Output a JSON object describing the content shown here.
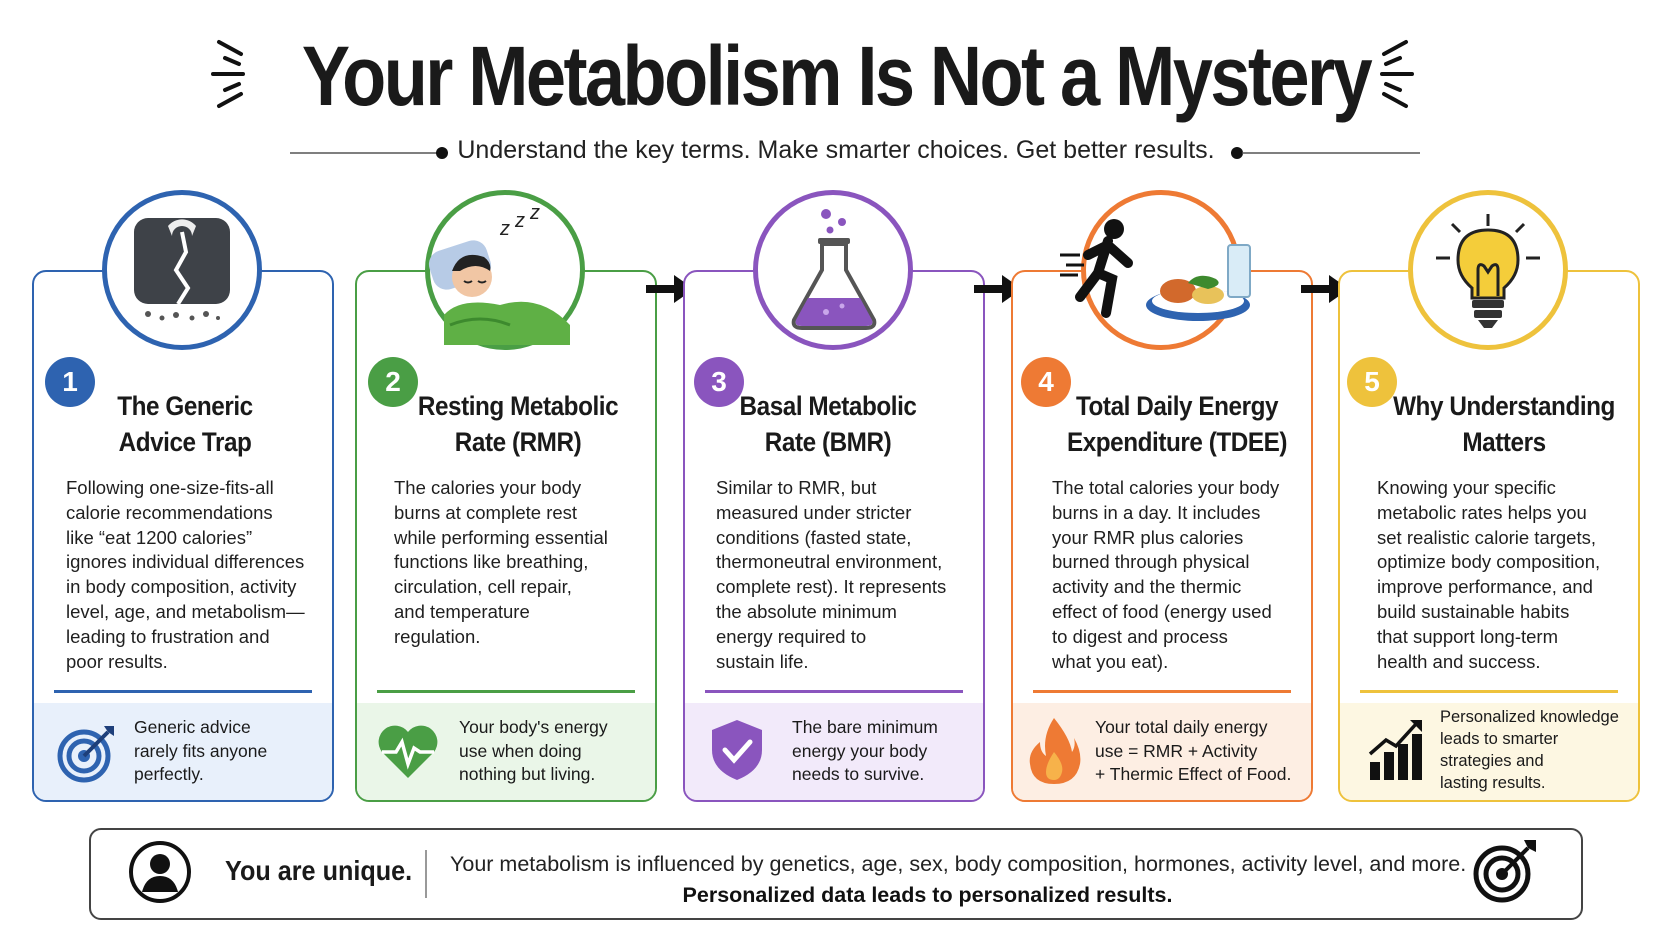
{
  "title": "Your Metabolism Is Not a Mystery",
  "subtitle": "Understand the key terms. Make smarter choices. Get better results.",
  "steps": [
    {
      "number": "1",
      "heading_line1": "The Generic",
      "heading_line2": "Advice Trap",
      "lines": [
        "Following one-size-fits-all",
        "calorie recommendations",
        "like “eat 1200 calories”",
        "ignores individual differences",
        "in body composition, activity",
        "level, age, and metabolism—",
        "leading to frustration and",
        "poor results."
      ],
      "footer": [
        "Generic advice",
        "rarely fits anyone",
        "perfectly."
      ],
      "color": "#2e63b0",
      "tint": "#e8f0fb",
      "icon": "broken-scale-icon",
      "footer_icon": "target-icon"
    },
    {
      "number": "2",
      "heading_line1": "Resting Metabolic",
      "heading_line2": "Rate (RMR)",
      "lines": [
        "The calories your body",
        "burns at complete rest",
        "while performing essential",
        "functions like breathing,",
        "circulation, cell repair,",
        "and temperature",
        "regulation."
      ],
      "footer": [
        "Your body's energy",
        "use when doing",
        "nothing but living."
      ],
      "color": "#4a9e45",
      "tint": "#eaf6e8",
      "icon": "sleeping-person-icon",
      "footer_icon": "heartbeat-icon"
    },
    {
      "number": "3",
      "heading_line1": "Basal Metabolic",
      "heading_line2": "Rate (BMR)",
      "lines": [
        "Similar to RMR, but",
        "measured under stricter",
        "conditions (fasted state,",
        "thermoneutral environment,",
        "complete rest). It represents",
        "the absolute minimum",
        "energy required to",
        "sustain life."
      ],
      "footer": [
        "The bare minimum",
        "energy your body",
        "needs to survive."
      ],
      "color": "#8a55be",
      "tint": "#f2eafa",
      "icon": "flask-icon",
      "footer_icon": "shield-check-icon"
    },
    {
      "number": "4",
      "heading_line1": "Total Daily Energy",
      "heading_line2": "Expenditure (TDEE)",
      "lines": [
        "The total calories your body",
        "burns in a day. It includes",
        "your RMR plus calories",
        "burned through physical",
        "activity and the thermic",
        "effect of food (energy used",
        "to digest and process",
        "what you eat)."
      ],
      "footer": [
        "Your total daily energy",
        "use = RMR + Activity",
        "+ Thermic Effect of Food."
      ],
      "color": "#ee7a34",
      "tint": "#fdeee3",
      "icon": "runner-food-icon",
      "footer_icon": "flame-icon"
    },
    {
      "number": "5",
      "heading_line1": "Why Understanding",
      "heading_line2": "Matters",
      "lines": [
        "Knowing your specific",
        "metabolic rates helps you",
        "set realistic calorie targets,",
        "optimize body composition,",
        "improve performance, and",
        "build sustainable habits",
        "that support long-term",
        "health and success."
      ],
      "footer": [
        "Personalized knowledge",
        "leads to smarter",
        "strategies and",
        "lasting results."
      ],
      "color": "#eec23c",
      "tint": "#fdf7e2",
      "icon": "lightbulb-icon",
      "footer_icon": "growth-chart-icon"
    }
  ],
  "banner": {
    "label": "You are unique.",
    "line1": "Your metabolism is influenced by genetics, age, sex, body composition, hormones, activity level, and more.",
    "line2": "Personalized data leads to personalized results.",
    "left_icon": "person-icon",
    "right_icon": "target-icon"
  }
}
